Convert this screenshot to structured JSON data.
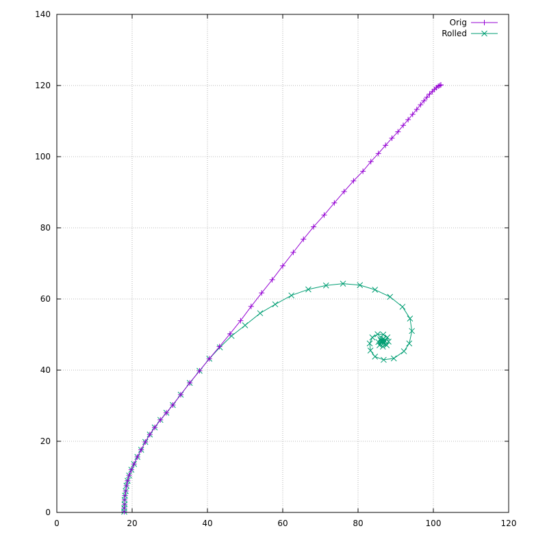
{
  "chart_data": {
    "type": "line",
    "title": "",
    "xlabel": "",
    "ylabel": "",
    "xlim": [
      0,
      120
    ],
    "ylim": [
      0,
      140
    ],
    "xticks": [
      0,
      20,
      40,
      60,
      80,
      100,
      120
    ],
    "yticks": [
      0,
      20,
      40,
      60,
      80,
      100,
      120,
      140
    ],
    "grid": true,
    "legend_position": "top-right",
    "series": [
      {
        "name": "Orig",
        "color": "#9400d3",
        "marker": "plus",
        "points": [
          [
            17.9,
            0.2
          ],
          [
            17.9,
            1.2
          ],
          [
            18.0,
            2.3
          ],
          [
            18.0,
            3.5
          ],
          [
            18.1,
            4.7
          ],
          [
            18.3,
            6.0
          ],
          [
            18.5,
            7.5
          ],
          [
            18.8,
            8.9
          ],
          [
            19.2,
            10.4
          ],
          [
            19.8,
            12.0
          ],
          [
            20.5,
            13.6
          ],
          [
            21.4,
            15.6
          ],
          [
            22.4,
            17.6
          ],
          [
            23.5,
            19.8
          ],
          [
            24.7,
            21.9
          ],
          [
            26.0,
            23.9
          ],
          [
            27.5,
            26.0
          ],
          [
            29.1,
            28.0
          ],
          [
            30.8,
            30.2
          ],
          [
            32.9,
            33.1
          ],
          [
            35.3,
            36.4
          ],
          [
            37.9,
            39.8
          ],
          [
            40.5,
            43.2
          ],
          [
            43.2,
            46.6
          ],
          [
            46.0,
            50.2
          ],
          [
            48.8,
            53.9
          ],
          [
            51.6,
            57.9
          ],
          [
            54.4,
            61.7
          ],
          [
            57.2,
            65.4
          ],
          [
            60.0,
            69.3
          ],
          [
            62.8,
            73.1
          ],
          [
            65.5,
            76.8
          ],
          [
            68.2,
            80.3
          ],
          [
            71.0,
            83.6
          ],
          [
            73.7,
            87.0
          ],
          [
            76.3,
            90.2
          ],
          [
            78.8,
            93.2
          ],
          [
            81.3,
            95.9
          ],
          [
            83.4,
            98.6
          ],
          [
            85.4,
            100.9
          ],
          [
            87.3,
            103.2
          ],
          [
            89.0,
            105.2
          ],
          [
            90.6,
            107.0
          ],
          [
            92.0,
            108.8
          ],
          [
            93.3,
            110.4
          ],
          [
            94.5,
            111.9
          ],
          [
            95.6,
            113.3
          ],
          [
            96.6,
            114.6
          ],
          [
            97.5,
            115.7
          ],
          [
            98.3,
            116.7
          ],
          [
            99.0,
            117.6
          ],
          [
            99.7,
            118.3
          ],
          [
            100.3,
            118.9
          ],
          [
            100.8,
            119.4
          ],
          [
            101.3,
            119.8
          ],
          [
            101.7,
            120.0
          ],
          [
            102.0,
            120.2
          ]
        ]
      },
      {
        "name": "Rolled",
        "color": "#009e73",
        "marker": "cross",
        "points": [
          [
            17.9,
            0.2
          ],
          [
            17.9,
            1.2
          ],
          [
            18.0,
            2.3
          ],
          [
            18.0,
            3.5
          ],
          [
            18.1,
            4.7
          ],
          [
            18.3,
            6.0
          ],
          [
            18.5,
            7.5
          ],
          [
            18.8,
            8.9
          ],
          [
            19.2,
            10.4
          ],
          [
            19.8,
            12.0
          ],
          [
            20.5,
            13.6
          ],
          [
            21.4,
            15.6
          ],
          [
            22.4,
            17.6
          ],
          [
            23.5,
            19.8
          ],
          [
            24.7,
            21.9
          ],
          [
            26.0,
            23.9
          ],
          [
            27.5,
            26.0
          ],
          [
            29.1,
            28.0
          ],
          [
            30.8,
            30.2
          ],
          [
            32.9,
            33.1
          ],
          [
            35.3,
            36.4
          ],
          [
            37.9,
            39.8
          ],
          [
            40.5,
            43.2
          ],
          [
            43.3,
            46.4
          ],
          [
            46.4,
            49.6
          ],
          [
            50.0,
            52.6
          ],
          [
            54.0,
            56.0
          ],
          [
            58.0,
            58.5
          ],
          [
            62.3,
            61.0
          ],
          [
            66.8,
            62.7
          ],
          [
            71.5,
            63.8
          ],
          [
            76.0,
            64.3
          ],
          [
            80.5,
            63.9
          ],
          [
            84.5,
            62.6
          ],
          [
            88.5,
            60.6
          ],
          [
            91.8,
            57.8
          ],
          [
            93.8,
            54.5
          ],
          [
            94.3,
            51.0
          ],
          [
            93.6,
            47.5
          ],
          [
            92.2,
            45.3
          ],
          [
            89.5,
            43.3
          ],
          [
            86.8,
            42.9
          ],
          [
            84.5,
            43.8
          ],
          [
            83.3,
            45.5
          ],
          [
            83.1,
            47.5
          ],
          [
            83.8,
            49.2
          ],
          [
            85.2,
            50.1
          ],
          [
            86.7,
            50.0
          ],
          [
            87.8,
            49.2
          ],
          [
            88.1,
            48.0
          ],
          [
            87.6,
            47.0
          ],
          [
            86.6,
            46.6
          ],
          [
            85.7,
            47.0
          ],
          [
            85.4,
            47.9
          ],
          [
            85.9,
            48.7
          ],
          [
            86.7,
            48.8
          ],
          [
            87.1,
            48.2
          ],
          [
            86.8,
            47.6
          ],
          [
            86.2,
            47.7
          ],
          [
            86.1,
            48.3
          ],
          [
            86.5,
            48.5
          ],
          [
            86.7,
            48.1
          ],
          [
            86.4,
            47.9
          ],
          [
            86.3,
            48.1
          ]
        ]
      }
    ]
  }
}
